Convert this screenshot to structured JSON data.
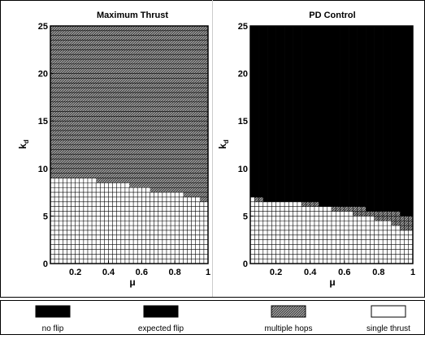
{
  "chart_data": [
    {
      "type": "heatmap",
      "title": "Maximum Thrust",
      "xlabel": "μ",
      "ylabel": "k_d",
      "xlim": [
        0.05,
        1.0
      ],
      "ylim": [
        0,
        25
      ],
      "xticks": [
        "0.2",
        "0.4",
        "0.6",
        "0.8",
        "1"
      ],
      "yticks": [
        "0",
        "5",
        "10",
        "15",
        "20",
        "25"
      ],
      "grid_step": {
        "mu": 0.025,
        "kd": 0.5
      },
      "boundaries": [
        {
          "upper_region": "multiple hops",
          "lower_region": "single thrust",
          "mu": [
            0.05,
            0.1,
            0.2,
            0.3,
            0.4,
            0.5,
            0.6,
            0.7,
            0.8,
            0.9,
            1.0
          ],
          "kd": [
            9.0,
            9.0,
            9.0,
            8.8,
            8.5,
            8.3,
            8.0,
            7.5,
            7.5,
            7.0,
            6.5
          ]
        }
      ],
      "top_region": "multiple hops"
    },
    {
      "type": "heatmap",
      "title": "PD Control",
      "xlabel": "μ",
      "ylabel": "k_d",
      "xlim": [
        0.05,
        1.0
      ],
      "ylim": [
        0,
        25
      ],
      "xticks": [
        "0.2",
        "0.4",
        "0.6",
        "0.8",
        "1"
      ],
      "yticks": [
        "0",
        "5",
        "10",
        "15",
        "20",
        "25"
      ],
      "grid_step": {
        "mu": 0.025,
        "kd": 0.5
      },
      "boundaries": [
        {
          "upper_region": "expected flip",
          "lower_region": "multiple hops",
          "mu": [
            0.05,
            0.1,
            0.15,
            0.2,
            0.3,
            0.4,
            0.5,
            0.55,
            0.6,
            0.7,
            0.75,
            0.8,
            0.85,
            0.9,
            0.95,
            1.0
          ],
          "kd": [
            7.0,
            7.0,
            6.5,
            6.5,
            6.5,
            6.5,
            6.0,
            6.0,
            6.0,
            6.0,
            5.5,
            5.5,
            5.5,
            5.5,
            5.0,
            5.0
          ]
        },
        {
          "upper_region": "multiple hops",
          "lower_region": "single thrust",
          "mu": [
            0.05,
            0.1,
            0.15,
            0.2,
            0.3,
            0.4,
            0.5,
            0.55,
            0.6,
            0.7,
            0.75,
            0.8,
            0.85,
            0.9,
            0.95,
            1.0
          ],
          "kd": [
            7.0,
            6.5,
            6.5,
            6.5,
            6.5,
            6.0,
            6.0,
            5.5,
            5.5,
            5.0,
            5.0,
            4.5,
            4.5,
            4.0,
            3.5,
            3.5
          ]
        }
      ],
      "top_region": "expected flip"
    }
  ],
  "legend": [
    {
      "label": "no flip",
      "color": "#000000",
      "pattern": "solid"
    },
    {
      "label": "expected flip",
      "color": "#000000",
      "pattern": "solid"
    },
    {
      "label": "multiple hops",
      "color": "#7a7a7a",
      "pattern": "hatch"
    },
    {
      "label": "single thrust",
      "color": "#ffffff",
      "pattern": "empty"
    }
  ]
}
